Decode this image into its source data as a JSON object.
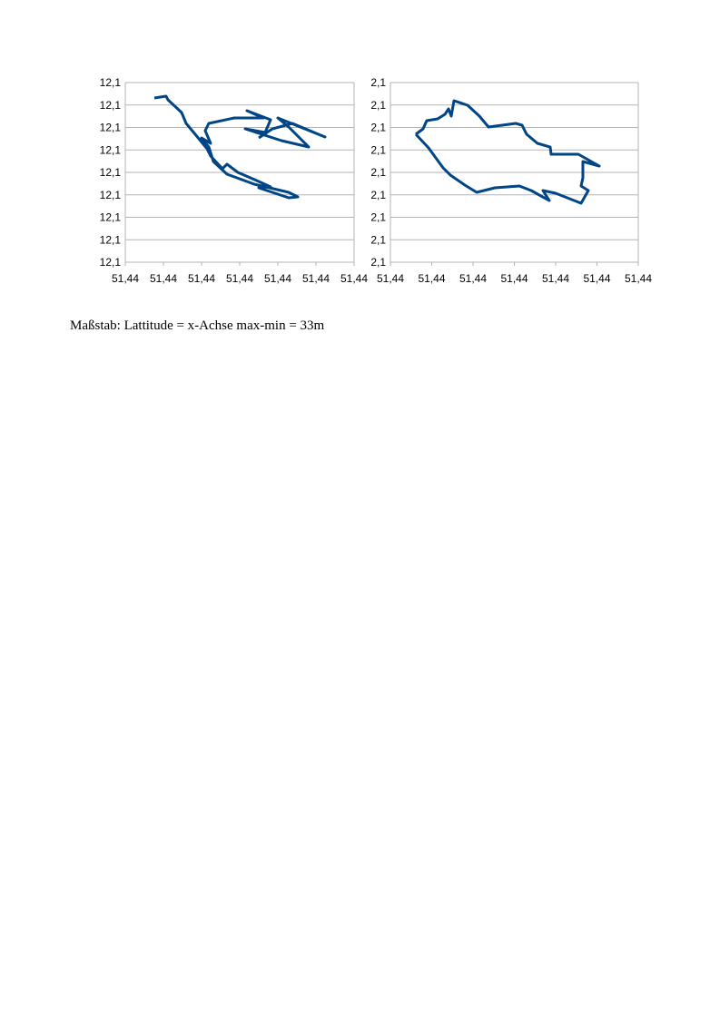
{
  "chart_data": [
    {
      "type": "line",
      "xlim": [
        51.44,
        51.4406
      ],
      "xticks": [
        {
          "value": 51.44,
          "label": "51,44"
        },
        {
          "value": 51.4401,
          "label": "51,44"
        },
        {
          "value": 51.4402,
          "label": "51,44"
        },
        {
          "value": 51.4403,
          "label": "51,44"
        },
        {
          "value": 51.4404,
          "label": "51,44"
        },
        {
          "value": 51.4405,
          "label": "51,44"
        },
        {
          "value": 51.4406,
          "label": "51,44"
        }
      ],
      "ylim": [
        12.1,
        12.1008
      ],
      "yticks": [
        {
          "value": 12.1,
          "label": "12,1"
        },
        {
          "value": 12.1001,
          "label": "12,1"
        },
        {
          "value": 12.1002,
          "label": "12,1"
        },
        {
          "value": 12.1003,
          "label": "12,1"
        },
        {
          "value": 12.1004,
          "label": "12,1"
        },
        {
          "value": 12.1005,
          "label": "12,1"
        },
        {
          "value": 12.1006,
          "label": "12,1"
        },
        {
          "value": 12.1007,
          "label": "12,1"
        },
        {
          "value": 12.1008,
          "label": "12,1"
        }
      ],
      "grid": true,
      "series": [
        {
          "color": "#004586",
          "x": [
            51.4400762,
            51.4401071,
            51.4401119,
            51.4401476,
            51.4401595,
            51.4401833,
            51.4402143,
            51.4402238,
            51.4402548,
            51.4402667,
            51.4402952,
            51.44035,
            51.440381,
            51.44035,
            51.4404286,
            51.4404524,
            51.4404286,
            51.4403381,
            51.4402667,
            51.440231,
            51.440219,
            51.4402,
            51.4402238,
            51.4402095,
            51.440219,
            51.4402857,
            51.4403619,
            51.440319,
            51.440381,
            51.4403667,
            51.4403143,
            51.4404095,
            51.440481,
            51.4404286,
            51.4404,
            51.4405238,
            51.4404381,
            51.4403857,
            51.44035
          ],
          "values": [
            12.1007313,
            12.1007394,
            12.1007232,
            12.1006667,
            12.1006182,
            12.1005697,
            12.1005051,
            12.1004727,
            12.1004162,
            12.1004364,
            12.1004,
            12.1003596,
            12.1003354,
            12.1003313,
            12.1002869,
            12.1002909,
            12.1003111,
            12.1003475,
            12.1003919,
            12.1004485,
            12.1005131,
            12.1005535,
            12.1005293,
            12.1005859,
            12.1006182,
            12.1006424,
            12.1006424,
            12.1006747,
            12.1006343,
            12.1005778,
            12.1005939,
            12.1005414,
            12.1005131,
            12.100602,
            12.1006424,
            12.1005576,
            12.1006182,
            12.1005939,
            12.1005535
          ]
        }
      ]
    },
    {
      "type": "line",
      "xlim": [
        51.44,
        51.4406
      ],
      "xticks": [
        {
          "value": 51.44,
          "label": "51,44"
        },
        {
          "value": 51.4401,
          "label": "51,44"
        },
        {
          "value": 51.4402,
          "label": "51,44"
        },
        {
          "value": 51.4403,
          "label": "51,44"
        },
        {
          "value": 51.4404,
          "label": "51,44"
        },
        {
          "value": 51.4405,
          "label": "51,44"
        },
        {
          "value": 51.4406,
          "label": "51,44"
        }
      ],
      "ylim": [
        2.1,
        2.1008
      ],
      "yticks": [
        {
          "value": 2.1,
          "label": "2,1"
        },
        {
          "value": 2.1001,
          "label": "2,1"
        },
        {
          "value": 2.1002,
          "label": "2,1"
        },
        {
          "value": 2.1003,
          "label": "2,1"
        },
        {
          "value": 2.1004,
          "label": "2,1"
        },
        {
          "value": 2.1005,
          "label": "2,1"
        },
        {
          "value": 2.1006,
          "label": "2,1"
        },
        {
          "value": 2.1007,
          "label": "2,1"
        },
        {
          "value": 2.1008,
          "label": "2,1"
        }
      ],
      "grid": true,
      "series": [
        {
          "color": "#004586",
          "x": [
            51.4400615,
            51.4400791,
            51.4400879,
            51.4401143,
            51.4401319,
            51.4401407,
            51.4401473,
            51.4401538,
            51.4401868,
            51.4402154,
            51.4402374,
            51.4403033,
            51.4403187,
            51.4403297,
            51.440356,
            51.4403868,
            51.440389,
            51.4404549,
            51.4405055,
            51.4404659,
            51.4404659,
            51.4404615,
            51.4404791,
            51.4404615,
            51.4404,
            51.4403692,
            51.4403846,
            51.4403407,
            51.4403121,
            51.4402527,
            51.4402088,
            51.4401802,
            51.4401451,
            51.4401275,
            51.4400923,
            51.4400615
          ],
          "values": [
            2.1005697,
            2.1005939,
            2.1006303,
            2.1006384,
            2.1006586,
            2.1006828,
            2.1006505,
            2.1007192,
            2.100699,
            2.1006505,
            2.100602,
            2.1006182,
            2.1006101,
            2.1005697,
            2.1005293,
            2.1005131,
            2.1004808,
            2.1004808,
            2.1004283,
            2.1004485,
            2.1003758,
            2.1003394,
            2.1003192,
            2.1002626,
            2.1003071,
            2.1003192,
            2.1002747,
            2.1003192,
            2.1003394,
            2.1003313,
            2.1003111,
            2.1003434,
            2.1003879,
            2.1004202,
            2.1005091,
            2.1005697
          ]
        }
      ]
    }
  ],
  "caption": "Maßstab: Lattitude = x-Achse max-min = 33m"
}
